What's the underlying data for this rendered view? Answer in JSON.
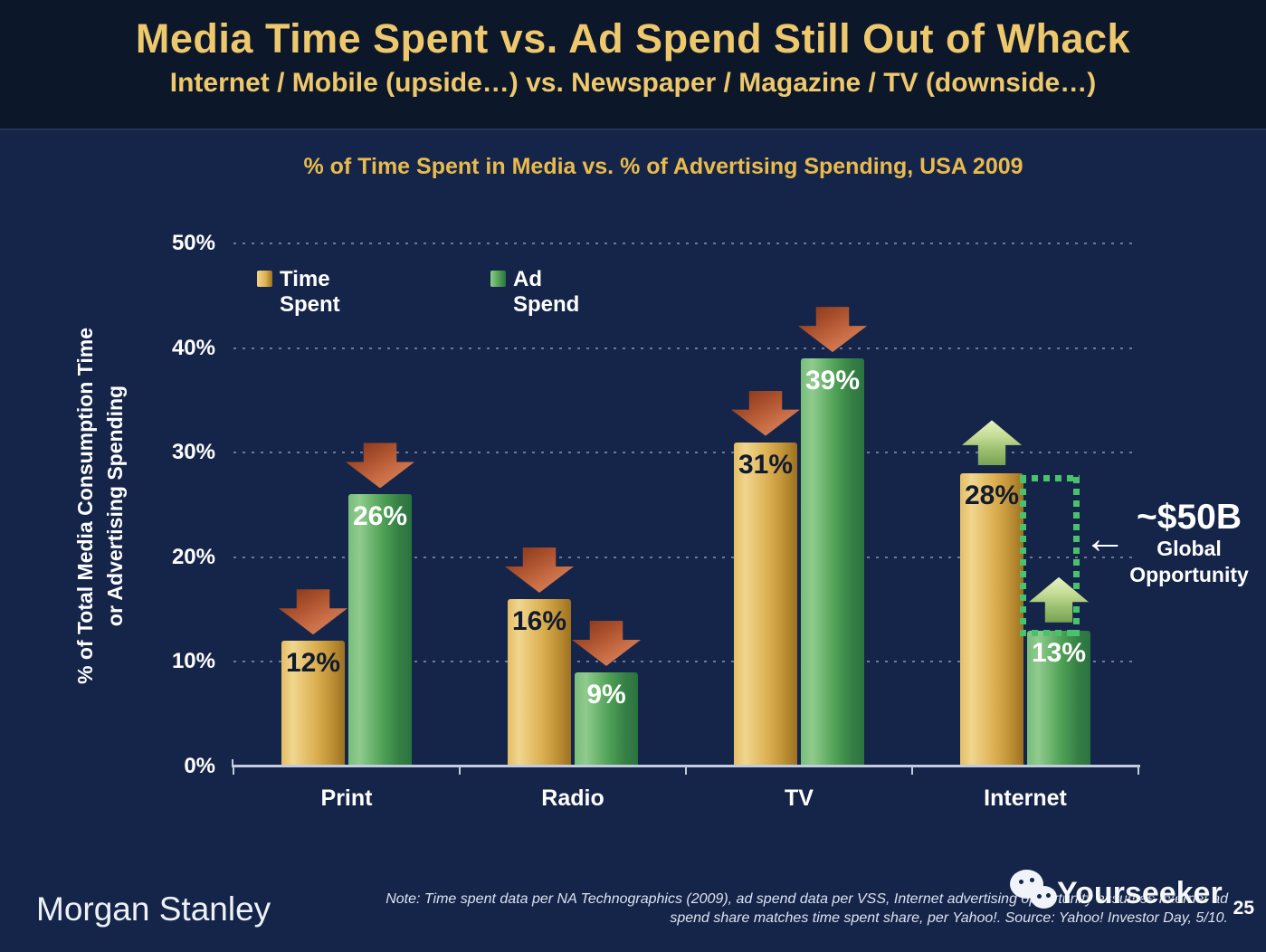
{
  "slide": {
    "title": "Media Time Spent vs. Ad Spend Still Out of Whack",
    "subtitle": "Internet / Mobile (upside…) vs. Newspaper / Magazine / TV (downside…)"
  },
  "chart_data": {
    "type": "bar",
    "title": "% of Time Spent in Media vs. % of Advertising Spending, USA 2009",
    "ylabel_line1": "% of Total Media Consumption Time",
    "ylabel_line2": "or Advertising Spending",
    "categories": [
      "Print",
      "Radio",
      "TV",
      "Internet"
    ],
    "series": [
      {
        "name": "Time Spent",
        "values": [
          12,
          16,
          31,
          28
        ],
        "unit": "%",
        "arrows": [
          "down",
          "down",
          "down",
          "up"
        ]
      },
      {
        "name": "Ad Spend",
        "values": [
          26,
          9,
          39,
          13
        ],
        "unit": "%",
        "arrows": [
          "down",
          "down",
          "down",
          "up"
        ]
      }
    ],
    "ylim": [
      0,
      50
    ],
    "ytick_step": 10,
    "yticks": [
      "0%",
      "10%",
      "20%",
      "30%",
      "40%",
      "50%"
    ],
    "grid": "dotted-horizontal",
    "legend_position": "top-left"
  },
  "annotation": {
    "arrow_glyph": "←",
    "value": "~$50B",
    "line1": "Global",
    "line2": "Opportunity"
  },
  "footer": {
    "brand": "Morgan Stanley",
    "note_line1": "Note: Time spent data per NA Technographics (2009), ad spend data per VSS, Internet advertising opportunity assumes Internet ad",
    "note_line2": "spend share matches time spent share, per Yahoo!. Source: Yahoo! Investor Day, 5/10.",
    "watermark": "Yourseeker",
    "page_number": "25"
  },
  "colors": {
    "bg_top": "#0c1729",
    "bg_main": "#15254a",
    "title_gold": "#eec86d",
    "chart_title_gold": "#e9bb4d",
    "text_white": "#ffffff",
    "grid_line": "#c4cee2",
    "axis_line": "#c3cbdc",
    "bar_gold_light": "#f0d68e",
    "bar_gold_mid": "#ddb254",
    "bar_gold_dark": "#9c7120",
    "bar_green_light": "#8fcb8d",
    "bar_green_mid": "#4ea055",
    "bar_green_dark": "#2a7340",
    "arrow_down_dark": "#7e3318",
    "arrow_down_light": "#db9068",
    "arrow_up_light": "#e7f2c2",
    "arrow_up_dark": "#78a254",
    "opportunity_dot_green": "#49c16d",
    "bar_label_dark": "#121a30",
    "note_text": "#dce2ee"
  }
}
